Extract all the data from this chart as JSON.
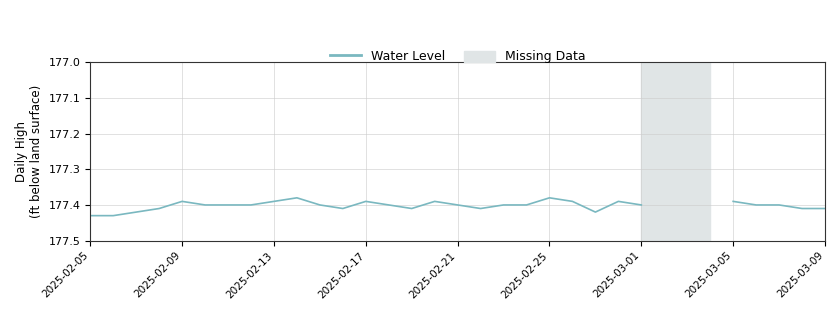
{
  "title": "",
  "ylabel": "Daily High\n(ft below land surface)",
  "xlabel": "",
  "line_color": "#7ab8c0",
  "line_width": 1.2,
  "missing_color": "#e0e5e6",
  "missing_alpha": 1.0,
  "missing_start": "2025-03-01",
  "missing_end": "2025-03-04",
  "ylim": [
    177.5,
    177.0
  ],
  "yticks": [
    177.0,
    177.1,
    177.2,
    177.3,
    177.4,
    177.5
  ],
  "grid_color": "#cccccc",
  "grid_alpha": 0.6,
  "background_color": "#ffffff",
  "legend_water_label": "Water Level",
  "legend_missing_label": "Missing Data",
  "dates": [
    "2025-02-05",
    "2025-02-06",
    "2025-02-07",
    "2025-02-08",
    "2025-02-09",
    "2025-02-10",
    "2025-02-11",
    "2025-02-12",
    "2025-02-13",
    "2025-02-14",
    "2025-02-15",
    "2025-02-16",
    "2025-02-17",
    "2025-02-18",
    "2025-02-19",
    "2025-02-20",
    "2025-02-21",
    "2025-02-22",
    "2025-02-23",
    "2025-02-24",
    "2025-02-25",
    "2025-02-26",
    "2025-02-27",
    "2025-02-28",
    "2025-03-01",
    "2025-03-05",
    "2025-03-06",
    "2025-03-07",
    "2025-03-08",
    "2025-03-09"
  ],
  "values": [
    177.43,
    177.43,
    177.42,
    177.41,
    177.39,
    177.4,
    177.4,
    177.4,
    177.39,
    177.38,
    177.4,
    177.41,
    177.39,
    177.4,
    177.41,
    177.39,
    177.4,
    177.41,
    177.4,
    177.4,
    177.38,
    177.39,
    177.42,
    177.39,
    177.4,
    177.39,
    177.4,
    177.4,
    177.41,
    177.41
  ],
  "xtick_dates": [
    "2025-02-05",
    "2025-02-09",
    "2025-02-13",
    "2025-02-17",
    "2025-02-21",
    "2025-02-25",
    "2025-03-01",
    "2025-03-05",
    "2025-03-09"
  ],
  "xlim_start": "2025-02-05",
  "xlim_end": "2025-03-09"
}
